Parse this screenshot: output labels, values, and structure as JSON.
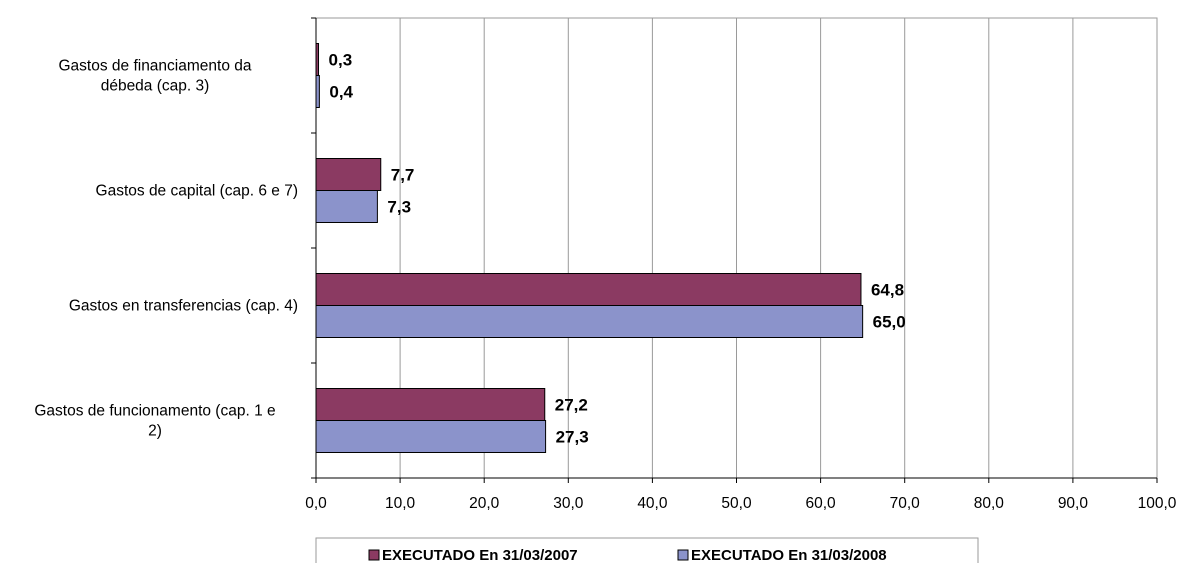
{
  "chart_data": {
    "type": "bar",
    "orientation": "horizontal",
    "categories": [
      [
        "Gastos de financiamento da",
        "débeda (cap. 3)"
      ],
      [
        "Gastos de capital (cap. 6 e 7)"
      ],
      [
        "Gastos en transferencias (cap. 4)"
      ],
      [
        "Gastos de funcionamento (cap. 1 e",
        "2)"
      ]
    ],
    "series": [
      {
        "name": "EXECUTADO En 31/03/2007",
        "color": "#8b3a62",
        "values": [
          0.3,
          7.7,
          64.8,
          27.2
        ],
        "labels": [
          "0,3",
          "7,7",
          "64,8",
          "27,2"
        ]
      },
      {
        "name": "EXECUTADO En 31/03/2008",
        "color": "#8b93cb",
        "values": [
          0.4,
          7.3,
          65.0,
          27.3
        ],
        "labels": [
          "0,4",
          "7,3",
          "65,0",
          "27,3"
        ]
      }
    ],
    "xlim": [
      0,
      100
    ],
    "xticks": [
      0,
      10,
      20,
      30,
      40,
      50,
      60,
      70,
      80,
      90,
      100
    ],
    "xtick_labels": [
      "0,0",
      "10,0",
      "20,0",
      "30,0",
      "40,0",
      "50,0",
      "60,0",
      "70,0",
      "80,0",
      "90,0",
      "100,0"
    ],
    "grid": "vertical",
    "legend_position": "bottom"
  }
}
